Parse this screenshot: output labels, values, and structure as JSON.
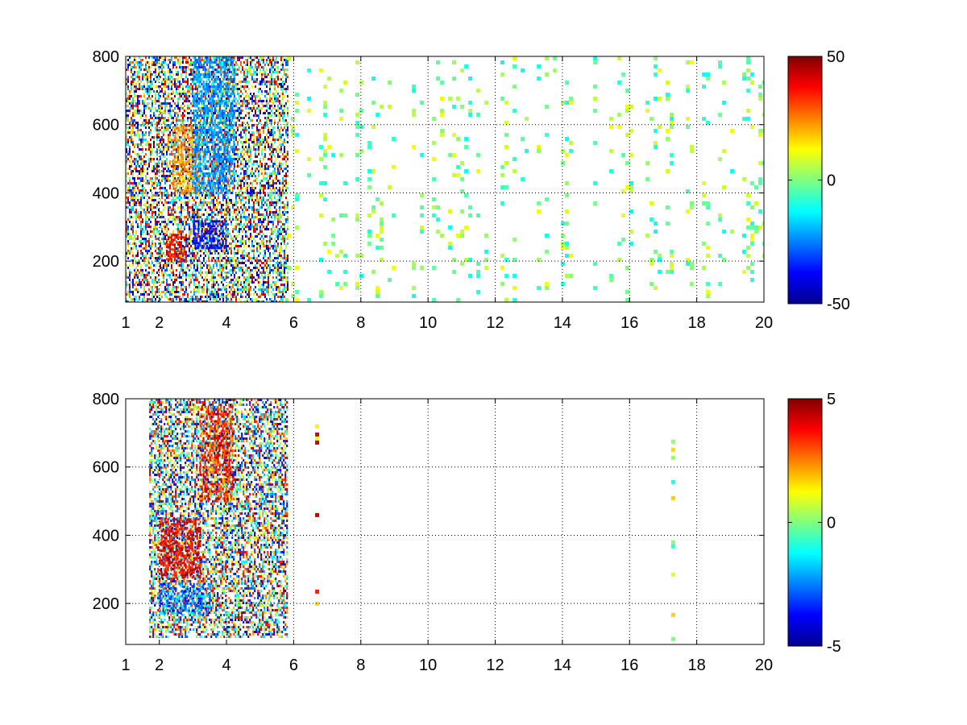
{
  "chart_data": [
    {
      "type": "heatmap",
      "title": "",
      "xlabel": "",
      "ylabel": "",
      "xlim": [
        1,
        20
      ],
      "ylim": [
        80,
        800
      ],
      "x_ticks": [
        "1",
        "2",
        "4",
        "6",
        "8",
        "10",
        "12",
        "14",
        "16",
        "18",
        "20"
      ],
      "x_tick_values": [
        1,
        2,
        4,
        6,
        8,
        10,
        12,
        14,
        16,
        18,
        20
      ],
      "y_ticks": [
        "200",
        "400",
        "600",
        "800"
      ],
      "y_tick_values": [
        200,
        400,
        600,
        800
      ],
      "grid": true,
      "colormap": "jet",
      "colorbar": {
        "range": [
          -50,
          50
        ],
        "tick_labels": [
          "50",
          "0",
          "-50"
        ],
        "tick_values": [
          50,
          0,
          -50
        ]
      },
      "regions": [
        {
          "x": [
            1,
            5.8
          ],
          "y": [
            80,
            800
          ],
          "value_range": [
            -50,
            50
          ],
          "density": "dense"
        },
        {
          "x": [
            2.2,
            2.8
          ],
          "y": [
            200,
            280
          ],
          "value_range": [
            30,
            45
          ],
          "density": "dense"
        },
        {
          "x": [
            2.4,
            3.2
          ],
          "y": [
            400,
            600
          ],
          "value_range": [
            15,
            30
          ],
          "density": "dense"
        },
        {
          "x": [
            3.0,
            4.0
          ],
          "y": [
            240,
            320
          ],
          "value_range": [
            -45,
            -30
          ],
          "density": "dense"
        },
        {
          "x": [
            3.0,
            4.2
          ],
          "y": [
            400,
            800
          ],
          "value_range": [
            -30,
            -15
          ],
          "density": "dense"
        },
        {
          "x": [
            5.8,
            20
          ],
          "y": [
            80,
            800
          ],
          "value_range": [
            -12,
            12
          ],
          "density": "sparse"
        }
      ]
    },
    {
      "type": "heatmap",
      "title": "",
      "xlabel": "",
      "ylabel": "",
      "xlim": [
        1,
        20
      ],
      "ylim": [
        80,
        800
      ],
      "x_ticks": [
        "1",
        "2",
        "4",
        "6",
        "8",
        "10",
        "12",
        "14",
        "16",
        "18",
        "20"
      ],
      "x_tick_values": [
        1,
        2,
        4,
        6,
        8,
        10,
        12,
        14,
        16,
        18,
        20
      ],
      "y_ticks": [
        "200",
        "400",
        "600",
        "800"
      ],
      "y_tick_values": [
        200,
        400,
        600,
        800
      ],
      "grid": true,
      "colormap": "jet",
      "colorbar": {
        "range": [
          -5,
          5
        ],
        "tick_labels": [
          "5",
          "0",
          "-5"
        ],
        "tick_values": [
          5,
          0,
          -5
        ]
      },
      "regions": [
        {
          "x": [
            1.7,
            5.8
          ],
          "y": [
            100,
            800
          ],
          "value_range": [
            -5,
            5
          ],
          "density": "dense"
        },
        {
          "x": [
            2.0,
            3.2
          ],
          "y": [
            280,
            450
          ],
          "value_range": [
            3,
            5
          ],
          "density": "dense"
        },
        {
          "x": [
            3.2,
            4.2
          ],
          "y": [
            500,
            780
          ],
          "value_range": [
            2,
            5
          ],
          "density": "dense"
        },
        {
          "x": [
            2.0,
            3.5
          ],
          "y": [
            170,
            260
          ],
          "value_range": [
            -4,
            -1
          ],
          "density": "dense"
        },
        {
          "x": [
            6.4,
            6.8
          ],
          "y": [
            120,
            760
          ],
          "value_range": [
            -3,
            5
          ],
          "density": "sparse"
        },
        {
          "x": [
            17.0,
            17.3
          ],
          "y": [
            100,
            680
          ],
          "value_range": [
            -1,
            2
          ],
          "density": "sparse"
        }
      ]
    }
  ]
}
